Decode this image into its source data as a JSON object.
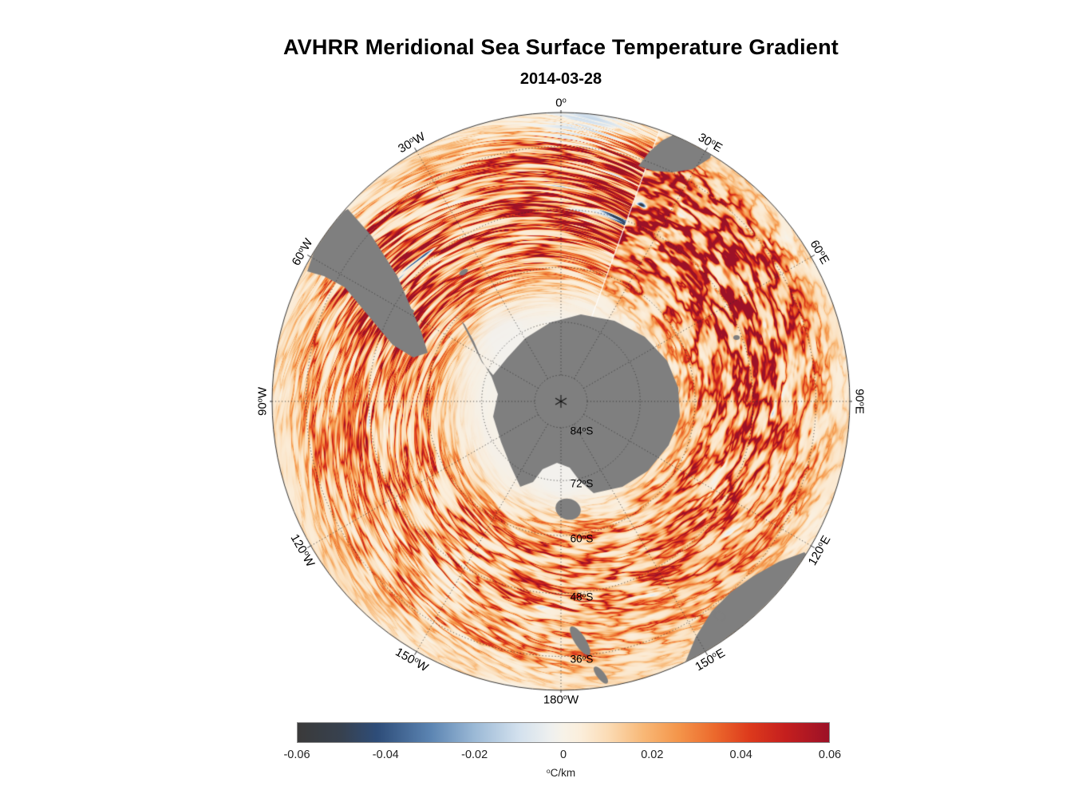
{
  "figure": {
    "title": "AVHRR Meridional Sea Surface Temperature Gradient",
    "subtitle": "2014-03-28"
  },
  "chart_data": {
    "type": "heatmap",
    "projection": "south polar stereographic",
    "title": "AVHRR Meridional Sea Surface Temperature Gradient",
    "date": "2014-03-28",
    "units": "°C/km",
    "value_range": [
      -0.06,
      0.06
    ],
    "colorbar": {
      "label": "°C/km",
      "tick_labels": [
        "-0.06",
        "-0.04",
        "-0.02",
        "0",
        "0.02",
        "0.04",
        "0.06"
      ],
      "stops": [
        {
          "v": -0.06,
          "c": "#3a3a3a"
        },
        {
          "v": -0.05,
          "c": "#37414f"
        },
        {
          "v": -0.042,
          "c": "#2e4d79"
        },
        {
          "v": -0.03,
          "c": "#5b84b2"
        },
        {
          "v": -0.02,
          "c": "#9bb9d6"
        },
        {
          "v": -0.01,
          "c": "#d3e1ee"
        },
        {
          "v": -0.003,
          "c": "#eef0ef"
        },
        {
          "v": 0.0,
          "c": "#f7f2e8"
        },
        {
          "v": 0.004,
          "c": "#fbeedb"
        },
        {
          "v": 0.01,
          "c": "#fbdcb6"
        },
        {
          "v": 0.018,
          "c": "#f8b877"
        },
        {
          "v": 0.026,
          "c": "#f4954a"
        },
        {
          "v": 0.034,
          "c": "#ec6a2d"
        },
        {
          "v": 0.042,
          "c": "#dd3a1c"
        },
        {
          "v": 0.05,
          "c": "#c51f1e"
        },
        {
          "v": 0.06,
          "c": "#9c1127"
        }
      ]
    },
    "meridian_labels": [
      {
        "az": 0,
        "label": "0°"
      },
      {
        "az": 30,
        "label": "30°E"
      },
      {
        "az": 60,
        "label": "60°E"
      },
      {
        "az": 90,
        "label": "90°E"
      },
      {
        "az": 120,
        "label": "120°E"
      },
      {
        "az": 150,
        "label": "150°E"
      },
      {
        "az": 180,
        "label": "180°W"
      },
      {
        "az": -150,
        "label": "150°W"
      },
      {
        "az": -120,
        "label": "120°W"
      },
      {
        "az": -90,
        "label": "90°W"
      },
      {
        "az": -60,
        "label": "60°W"
      },
      {
        "az": -30,
        "label": "30°W"
      }
    ],
    "latitude_labels": [
      {
        "lat": 84,
        "label": "84°S"
      },
      {
        "lat": 72,
        "label": "72°S"
      },
      {
        "lat": 60,
        "label": "60°S"
      },
      {
        "lat": 48,
        "label": "48°S"
      },
      {
        "lat": 36,
        "label": "36°S"
      }
    ],
    "land_color": "#7f7f7f",
    "ice_color": "#f0efec",
    "grid_color": "#2d2d2d",
    "background_color": "#ffffff"
  }
}
